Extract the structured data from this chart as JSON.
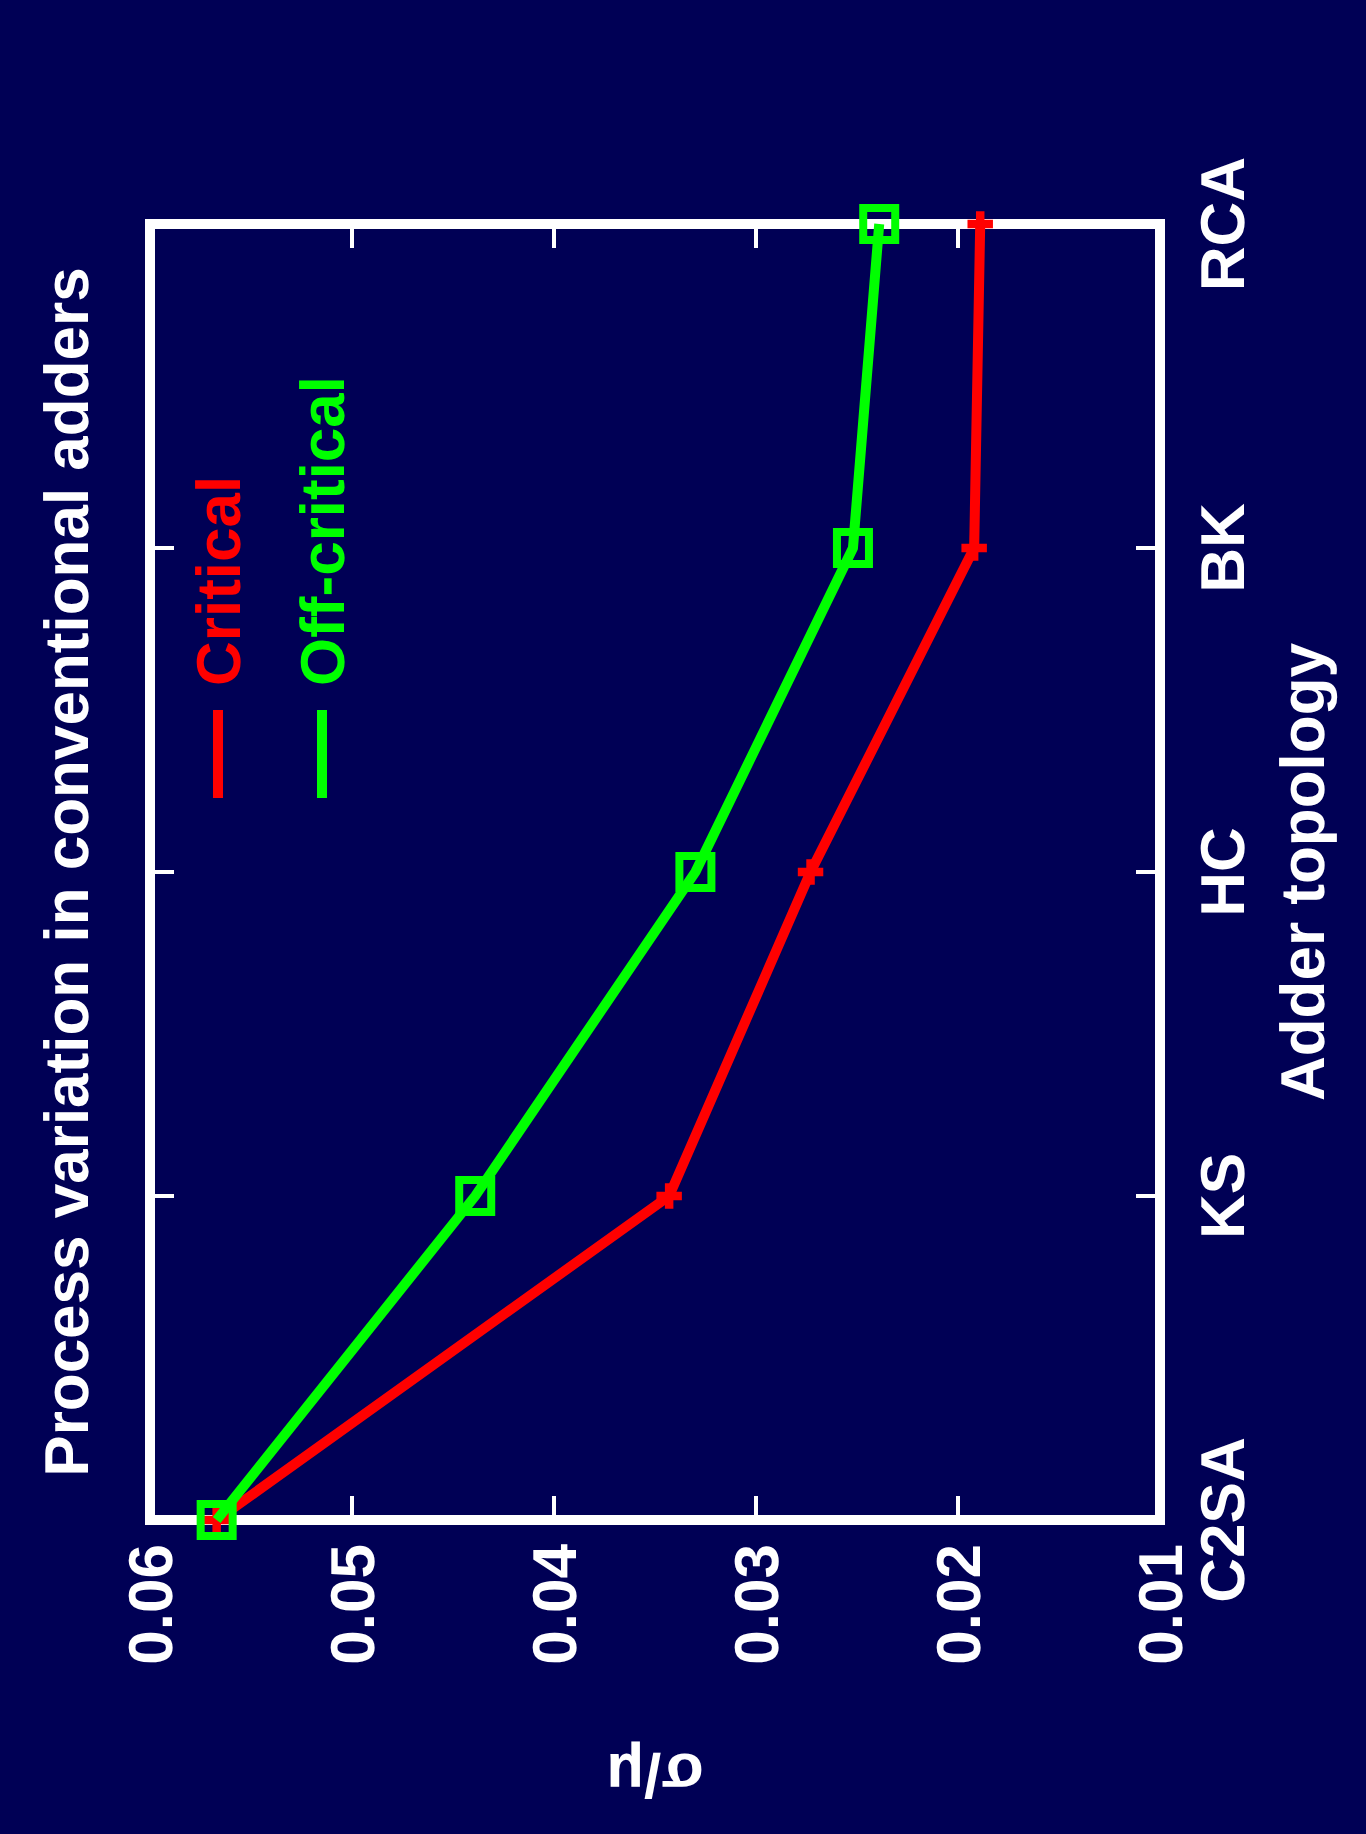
{
  "chart_data": {
    "type": "line",
    "orientation": "horizontal",
    "title": "Process variation in conventional adders",
    "xlabel": "σ/μ",
    "ylabel": "Adder topology",
    "categories": [
      "RCA",
      "BK",
      "HC",
      "KS",
      "C2SA"
    ],
    "series": [
      {
        "name": "Critical",
        "color": "#ff0000",
        "marker": "cross",
        "values": [
          0.0189,
          0.0192,
          0.0273,
          0.0343,
          0.0567
        ]
      },
      {
        "name": "Off-critical",
        "color": "#00ff00",
        "marker": "square",
        "values": [
          0.0239,
          0.0252,
          0.033,
          0.0439,
          0.0567
        ]
      }
    ],
    "xlim": [
      0.06,
      0.01
    ],
    "xticks": [
      0.06,
      0.05,
      0.04,
      0.03,
      0.02,
      0.01
    ],
    "grid": false,
    "legend": "top left",
    "line_style": "solid"
  }
}
